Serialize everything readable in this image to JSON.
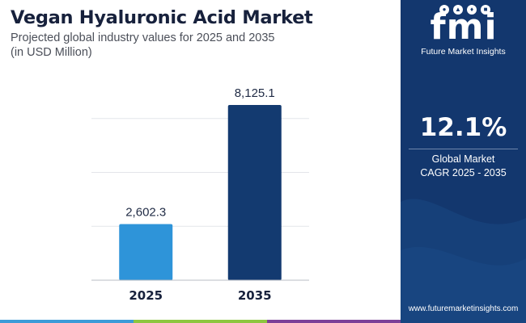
{
  "title": "Vegan Hyaluronic Acid Market",
  "subtitle_line1": "Projected global industry values for 2025 and 2035",
  "subtitle_line2": "(in USD Million)",
  "chart_data": {
    "type": "bar",
    "title": "Vegan Hyaluronic Acid Market",
    "subtitle": "Projected global industry values for 2025 and 2035 (in USD Million)",
    "categories": [
      "2025",
      "2035"
    ],
    "values": [
      2602.3,
      8125.1
    ],
    "value_labels": [
      "2,602.3",
      "8,125.1"
    ],
    "bar_colors": [
      "#2e94d9",
      "#133a70"
    ],
    "ylim": [
      0,
      10000
    ],
    "grid": true,
    "xlabel": "",
    "ylabel": "",
    "legend": "none"
  },
  "sidebar": {
    "logo_text": "fmi",
    "brand_name": "Future Market Insights",
    "cagr_value": "12.1%",
    "cagr_label_line1": "Global Market",
    "cagr_label_line2": "CAGR 2025 - 2035",
    "website": "www.futuremarketinsights.com",
    "background_color": "#13376e"
  },
  "footer_colors": [
    "#3c9bd8",
    "#8dc63f",
    "#7c3f98"
  ]
}
